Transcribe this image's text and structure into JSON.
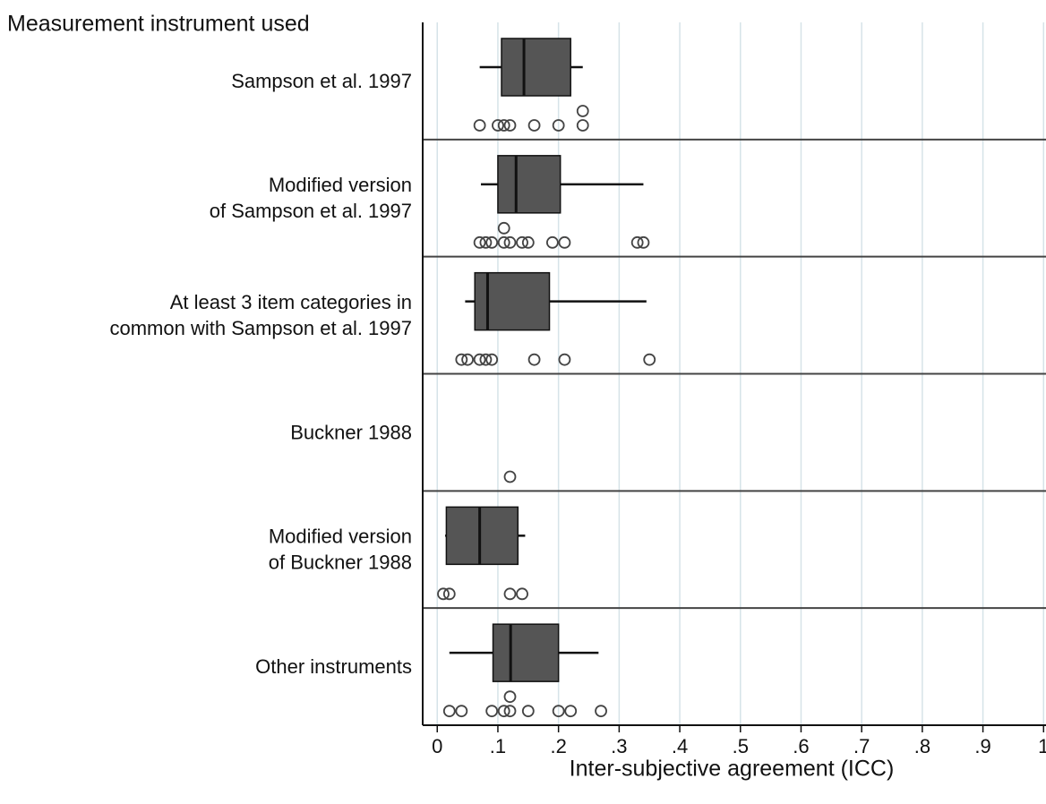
{
  "chart_data": {
    "type": "boxplot",
    "y_axis_title": "Measurement instrument used",
    "x_axis_title": "Inter-subjective agreement (ICC)",
    "xlim": [
      -0.024,
      1.004
    ],
    "xticks": [
      0,
      {
        "value": 0.1,
        "label": ".1"
      },
      {
        "value": 0.2,
        "label": ".2"
      },
      {
        "value": 0.3,
        "label": ".3"
      },
      {
        "value": 0.4,
        "label": ".4"
      },
      {
        "value": 0.5,
        "label": ".5"
      },
      {
        "value": 0.6,
        "label": ".6"
      },
      {
        "value": 0.7,
        "label": ".7"
      },
      {
        "value": 0.8,
        "label": ".8"
      },
      {
        "value": 0.9,
        "label": ".9"
      },
      1
    ],
    "grid": true,
    "box_color": "#555555",
    "groups": [
      {
        "label": [
          "Sampson et al. 1997"
        ],
        "whisker_low": 0.07,
        "q1": 0.106,
        "median": 0.143,
        "q3": 0.22,
        "whisker_high": 0.24,
        "points": [
          0.07,
          0.1,
          0.11,
          0.12,
          0.16,
          0.2,
          0.24,
          0.24
        ]
      },
      {
        "label": [
          "Modified version",
          "of Sampson et al. 1997"
        ],
        "whisker_low": 0.072,
        "q1": 0.1,
        "median": 0.13,
        "q3": 0.203,
        "whisker_high": 0.34,
        "points": [
          0.07,
          0.08,
          0.09,
          0.11,
          0.11,
          0.12,
          0.14,
          0.15,
          0.19,
          0.21,
          0.33,
          0.34
        ]
      },
      {
        "label": [
          "At least 3 item categories in",
          "common with Sampson et al. 1997"
        ],
        "whisker_low": 0.046,
        "q1": 0.062,
        "median": 0.083,
        "q3": 0.185,
        "whisker_high": 0.345,
        "points": [
          0.04,
          0.05,
          0.07,
          0.08,
          0.09,
          0.16,
          0.21,
          0.35
        ]
      },
      {
        "label": [
          "Buckner 1988"
        ],
        "points": [
          0.12
        ]
      },
      {
        "label": [
          "Modified version",
          "of Buckner 1988"
        ],
        "whisker_low": 0.013,
        "q1": 0.015,
        "median": 0.07,
        "q3": 0.133,
        "whisker_high": 0.145,
        "points": [
          0.01,
          0.02,
          0.12,
          0.14
        ]
      },
      {
        "label": [
          "Other instruments"
        ],
        "whisker_low": 0.02,
        "q1": 0.092,
        "median": 0.121,
        "q3": 0.2,
        "whisker_high": 0.266,
        "points": [
          0.02,
          0.04,
          0.09,
          0.11,
          0.12,
          0.12,
          0.15,
          0.2,
          0.22,
          0.27
        ]
      }
    ]
  }
}
